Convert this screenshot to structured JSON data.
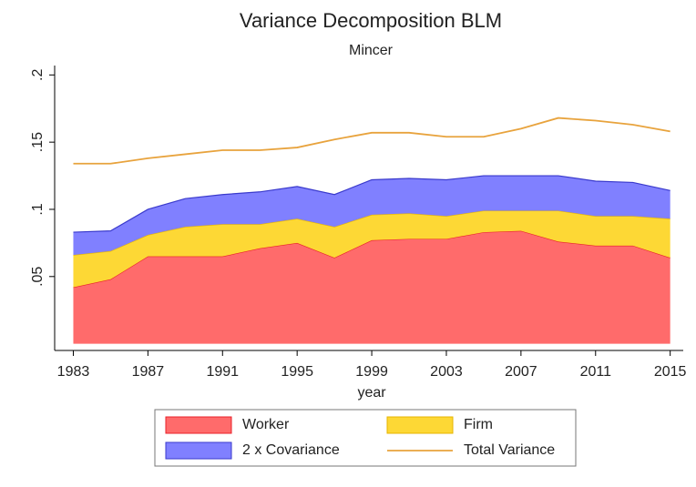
{
  "chart_data": {
    "type": "area",
    "title": "Variance Decomposition BLM",
    "subtitle": "Mincer",
    "x_label": "year",
    "x": [
      1983,
      1985,
      1987,
      1989,
      1991,
      1993,
      1995,
      1997,
      1999,
      2001,
      2003,
      2005,
      2007,
      2009,
      2011,
      2013,
      2015
    ],
    "xlim": [
      1982,
      2015.7
    ],
    "xticks": [
      1983,
      1987,
      1991,
      1995,
      1999,
      2003,
      2007,
      2011,
      2015
    ],
    "ylim": [
      -0.005,
      0.207
    ],
    "yticks": [
      {
        "value": 0.05,
        "label": ".05"
      },
      {
        "value": 0.1,
        "label": ".1"
      },
      {
        "value": 0.15,
        "label": ".15"
      },
      {
        "value": 0.2,
        "label": ".2"
      }
    ],
    "series": [
      {
        "name": "Worker",
        "type": "area",
        "color": "#ff6b6b",
        "edge": "#e8202a",
        "values": [
          0.042,
          0.048,
          0.065,
          0.065,
          0.065,
          0.071,
          0.075,
          0.064,
          0.077,
          0.078,
          0.078,
          0.083,
          0.084,
          0.076,
          0.073,
          0.073,
          0.064
        ]
      },
      {
        "name": "Firm",
        "type": "area",
        "color": "#fdd835",
        "edge": "#e6b400",
        "values": [
          0.024,
          0.021,
          0.016,
          0.022,
          0.024,
          0.018,
          0.018,
          0.023,
          0.019,
          0.019,
          0.017,
          0.016,
          0.015,
          0.023,
          0.022,
          0.022,
          0.029
        ]
      },
      {
        "name": "2 x Covariance",
        "type": "area",
        "color": "#8080ff",
        "edge": "#3a3acc",
        "values": [
          0.017,
          0.015,
          0.019,
          0.021,
          0.022,
          0.024,
          0.024,
          0.024,
          0.026,
          0.026,
          0.027,
          0.026,
          0.026,
          0.026,
          0.026,
          0.025,
          0.021
        ]
      },
      {
        "name": "Total Variance",
        "type": "line",
        "color": "#e8a33d",
        "values": [
          0.134,
          0.134,
          0.138,
          0.141,
          0.144,
          0.144,
          0.146,
          0.152,
          0.157,
          0.157,
          0.154,
          0.154,
          0.16,
          0.168,
          0.166,
          0.163,
          0.158
        ]
      }
    ]
  }
}
